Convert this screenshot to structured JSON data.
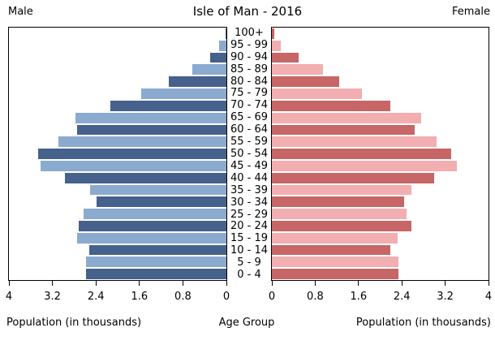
{
  "title": "Isle of Man - 2016",
  "header": {
    "male": "Male",
    "female": "Female"
  },
  "captions": {
    "left": "Population (in thousands)",
    "center": "Age Group",
    "right": "Population (in thousands)"
  },
  "axis": {
    "max_each_side": 4,
    "left_tick_labels": [
      "4",
      "3.2",
      "2.4",
      "1.6",
      "0.8",
      "0"
    ],
    "right_tick_labels": [
      "0",
      "0.8",
      "1.6",
      "2.4",
      "3.2",
      "4"
    ]
  },
  "colors": {
    "male_dark": "#45618c",
    "male_light": "#8baacf",
    "female_dark": "#c66666",
    "female_light": "#f2aeb0",
    "axis_line": "#000000",
    "text": "#000000",
    "background": "#ffffff"
  },
  "chart_data": {
    "type": "bar",
    "variant": "population-pyramid",
    "title": "Isle of Man - 2016",
    "unit": "thousands",
    "xlim_each_side": [
      0,
      4
    ],
    "legend_position": "none",
    "grid": false,
    "age_groups": [
      "100+",
      "95 - 99",
      "90 - 94",
      "85 - 89",
      "80 - 84",
      "75 - 79",
      "70 - 74",
      "65 - 69",
      "60 - 64",
      "55 - 59",
      "50 - 54",
      "45 - 49",
      "40 - 44",
      "35 - 39",
      "30 - 34",
      "25 - 29",
      "20 - 24",
      "15 - 19",
      "10 - 14",
      "5 - 9",
      "0 - 4"
    ],
    "series": [
      {
        "name": "Male",
        "side": "left",
        "values": [
          0.01,
          0.13,
          0.3,
          0.62,
          1.06,
          1.56,
          2.14,
          2.77,
          2.75,
          3.09,
          3.47,
          3.42,
          2.97,
          2.51,
          2.39,
          2.62,
          2.71,
          2.74,
          2.53,
          2.58,
          2.58
        ]
      },
      {
        "name": "Female",
        "side": "right",
        "values": [
          0.04,
          0.16,
          0.5,
          0.94,
          1.25,
          1.67,
          2.19,
          2.75,
          2.63,
          3.04,
          3.31,
          3.41,
          3.0,
          2.58,
          2.44,
          2.48,
          2.58,
          2.32,
          2.19,
          2.33,
          2.34
        ]
      }
    ]
  }
}
